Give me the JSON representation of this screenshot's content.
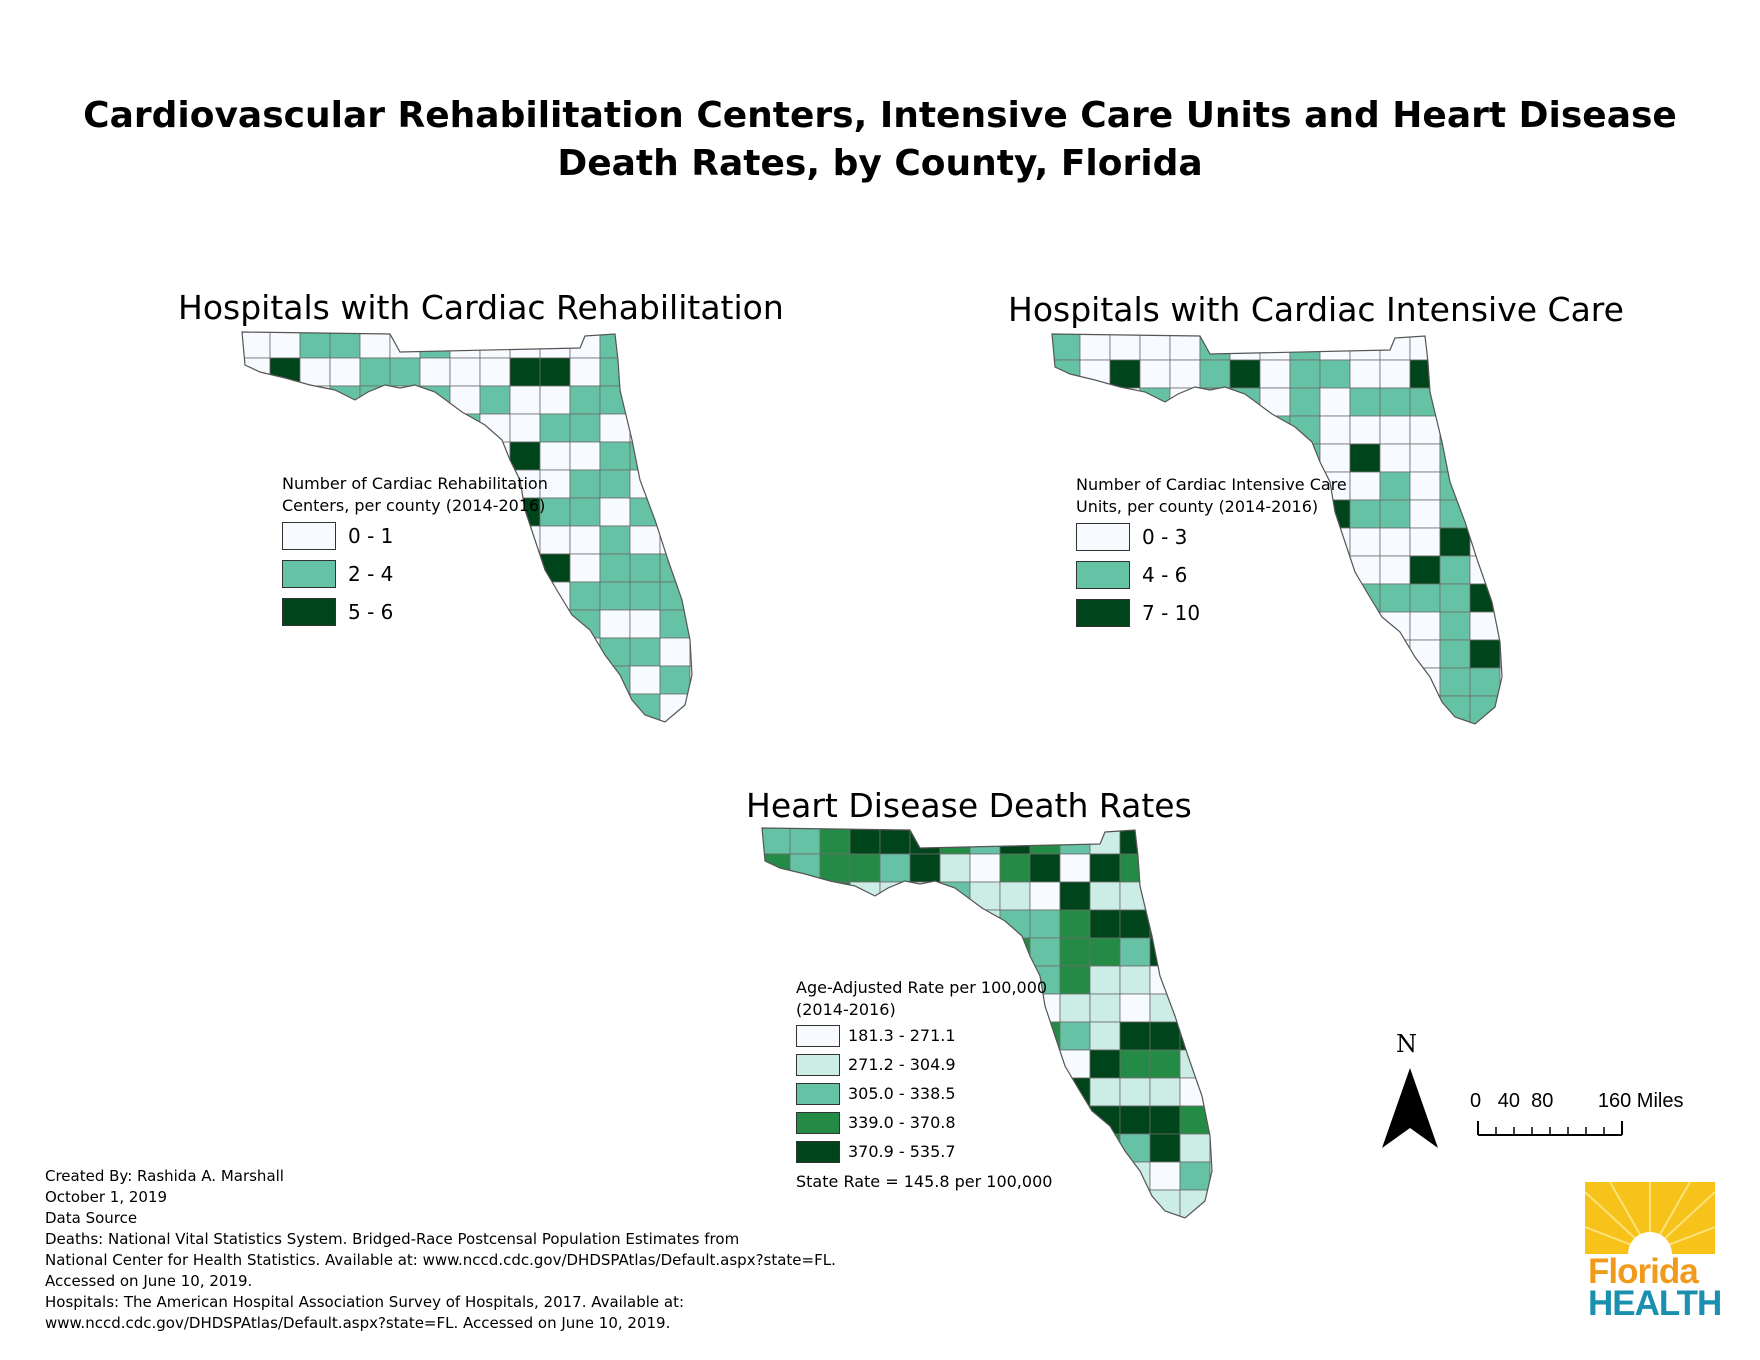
{
  "title": {
    "line1": "Cardiovascular Rehabilitation Centers, Intensive Care Units and Heart Disease",
    "line2": "Death Rates, by County, Florida"
  },
  "colors": {
    "county_border": "#6b6b6b",
    "rehab": [
      "#f7fbff",
      "#66c2a4",
      "#00441b"
    ],
    "icu": [
      "#f7fbff",
      "#66c2a4",
      "#00441b"
    ],
    "death": [
      "#f7fbff",
      "#ccece6",
      "#66c2a4",
      "#238b45",
      "#00441b"
    ],
    "logo_orange": "#f29a1b",
    "logo_blue": "#1a8fb0"
  },
  "maps": {
    "rehab": {
      "title": "Hospitals with Cardiac Rehabilitation",
      "legend_title_line1": "Number of Cardiac Rehabilitation",
      "legend_title_line2": "Centers, per county (2014-2016)",
      "classes": [
        "0 - 1",
        "2 - 4",
        "5 - 6"
      ]
    },
    "icu": {
      "title": "Hospitals with Cardiac Intensive Care",
      "legend_title_line1": "Number of Cardiac Intensive Care",
      "legend_title_line2": "Units, per county (2014-2016)",
      "classes": [
        "0 - 3",
        "4 - 6",
        "7 - 10"
      ]
    },
    "death": {
      "title": "Heart Disease Death Rates",
      "legend_title_line1": "Age-Adjusted Rate per 100,000",
      "legend_title_line2": "(2014-2016)",
      "classes": [
        "181.3 - 271.1",
        "271.2 - 304.9",
        "305.0 - 338.5",
        "339.0 - 370.8",
        "370.9 - 535.7"
      ],
      "state_rate": "State Rate = 145.8 per 100,000"
    }
  },
  "north_label": "N",
  "scale": {
    "ticks": "0   40  80        160 Miles"
  },
  "credits": [
    "Created By: Rashida A. Marshall",
    "October 1, 2019",
    "Data Source",
    "Deaths: National Vital Statistics System. Bridged-Race Postcensal Population Estimates from",
    "National Center for Health Statistics. Available at: www.nccd.cdc.gov/DHDSPAtlas/Default.aspx?state=FL.",
    "Accessed on June 10, 2019.",
    "Hospitals: The American Hospital Association Survey of Hospitals, 2017. Available at:",
    " www.nccd.cdc.gov/DHDSPAtlas/Default.aspx?state=FL. Accessed on June 10, 2019."
  ],
  "logo": {
    "word1": "Florida",
    "word2": "HEALTH"
  }
}
